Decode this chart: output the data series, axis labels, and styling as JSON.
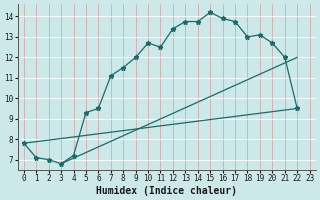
{
  "xlabel": "Humidex (Indice chaleur)",
  "bg_color": "#cce8e8",
  "grid_color": "#aad4d4",
  "line_color": "#1a6b6b",
  "xlim": [
    -0.5,
    23.5
  ],
  "ylim": [
    6.5,
    14.6
  ],
  "xticks": [
    0,
    1,
    2,
    3,
    4,
    5,
    6,
    7,
    8,
    9,
    10,
    11,
    12,
    13,
    14,
    15,
    16,
    17,
    18,
    19,
    20,
    21,
    22,
    23
  ],
  "yticks": [
    7,
    8,
    9,
    10,
    11,
    12,
    13,
    14
  ],
  "curve1_x": [
    0,
    1,
    2,
    3,
    4,
    5,
    6,
    7,
    8,
    9,
    10,
    11,
    12,
    13,
    14,
    15,
    16,
    17,
    18,
    19,
    20,
    21,
    22
  ],
  "curve1_y": [
    7.8,
    7.1,
    7.0,
    6.8,
    7.2,
    9.3,
    9.5,
    11.1,
    11.5,
    12.0,
    12.7,
    12.5,
    13.4,
    13.75,
    13.75,
    14.2,
    13.9,
    13.75,
    13.0,
    13.1,
    12.7,
    12.0,
    9.5
  ],
  "line1_x": [
    0,
    22
  ],
  "line1_y": [
    7.8,
    9.5
  ],
  "line2_x": [
    3,
    22
  ],
  "line2_y": [
    6.8,
    12.0
  ],
  "xlabel_fontsize": 7,
  "tick_fontsize": 5.5
}
